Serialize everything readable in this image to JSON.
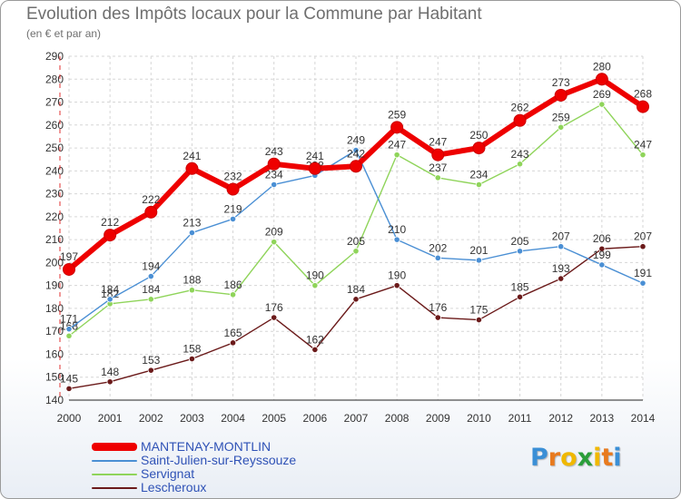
{
  "title": "Evolution des Impôts locaux pour la Commune par Habitant",
  "subtitle": "(en € et par an)",
  "logo": "Proxiti",
  "chart_data": {
    "type": "line",
    "title": "Evolution des Impôts locaux pour la Commune par Habitant",
    "subtitle": "(en € et par an)",
    "xlabel": "",
    "ylabel": "",
    "x": [
      2000,
      2001,
      2002,
      2003,
      2004,
      2005,
      2006,
      2007,
      2008,
      2009,
      2010,
      2011,
      2012,
      2013,
      2014
    ],
    "ylim": [
      140,
      290
    ],
    "yticks": [
      140,
      150,
      160,
      170,
      180,
      190,
      200,
      210,
      220,
      230,
      240,
      250,
      260,
      270,
      280,
      290
    ],
    "grid": true,
    "legend_position": "bottom-left",
    "series": [
      {
        "name": "MANTENAY-MONTLIN",
        "color": "#ee0000",
        "values": [
          197,
          212,
          222,
          241,
          232,
          243,
          241,
          242,
          259,
          247,
          250,
          262,
          273,
          280,
          268
        ]
      },
      {
        "name": "Saint-Julien-sur-Reyssouze",
        "color": "#4a8fd4",
        "values": [
          171,
          184,
          194,
          213,
          219,
          234,
          238,
          249,
          210,
          202,
          201,
          205,
          207,
          199,
          191
        ]
      },
      {
        "name": "Servignat",
        "color": "#8fd45a",
        "values": [
          168,
          182,
          184,
          188,
          186,
          209,
          190,
          205,
          247,
          237,
          234,
          243,
          259,
          269,
          247
        ]
      },
      {
        "name": "Lescheroux",
        "color": "#6b1a1a",
        "values": [
          145,
          148,
          153,
          158,
          165,
          176,
          162,
          184,
          190,
          176,
          175,
          185,
          193,
          206,
          207
        ]
      }
    ]
  }
}
